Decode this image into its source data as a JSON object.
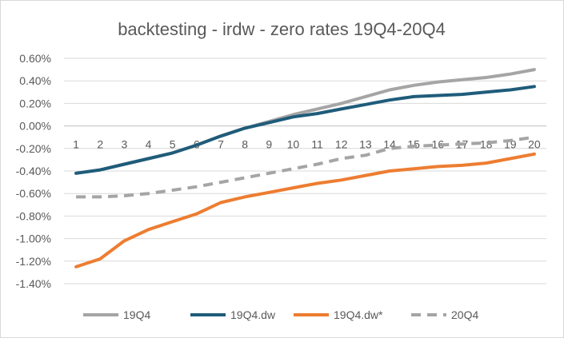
{
  "chart_data": {
    "type": "line",
    "title": "backtesting - irdw  -  zero rates 19Q4-20Q4",
    "x": [
      1,
      2,
      3,
      4,
      5,
      6,
      7,
      8,
      9,
      10,
      11,
      12,
      13,
      14,
      15,
      16,
      17,
      18,
      19,
      20
    ],
    "x_tick_labels": [
      "1",
      "2",
      "3",
      "4",
      "5",
      "6",
      "7",
      "8",
      "9",
      "10",
      "11",
      "12",
      "13",
      "14",
      "15",
      "16",
      "17",
      "18",
      "19",
      "20"
    ],
    "ylim": [
      -1.4,
      0.6
    ],
    "y_tick_values": [
      0.6,
      0.4,
      0.2,
      0.0,
      -0.2,
      -0.4,
      -0.6,
      -0.8,
      -1.0,
      -1.2,
      -1.4
    ],
    "y_tick_labels": [
      "0.60%",
      "0.40%",
      "0.20%",
      "0.00%",
      "-0.20%",
      "-0.40%",
      "-0.60%",
      "-0.80%",
      "-1.00%",
      "-1.20%",
      "-1.40%"
    ],
    "grid": true,
    "legend_position": "bottom",
    "series": [
      {
        "name": "19Q4",
        "color": "#a5a5a5",
        "dash": "solid",
        "values": [
          -0.42,
          -0.39,
          -0.34,
          -0.29,
          -0.24,
          -0.17,
          -0.09,
          -0.02,
          0.04,
          0.1,
          0.15,
          0.2,
          0.26,
          0.32,
          0.36,
          0.39,
          0.41,
          0.43,
          0.46,
          0.5
        ]
      },
      {
        "name": "19Q4.dw",
        "color": "#1f5c7a",
        "dash": "solid",
        "values": [
          -0.42,
          -0.39,
          -0.34,
          -0.29,
          -0.24,
          -0.17,
          -0.09,
          -0.02,
          0.03,
          0.08,
          0.11,
          0.15,
          0.19,
          0.23,
          0.26,
          0.27,
          0.28,
          0.3,
          0.32,
          0.35
        ]
      },
      {
        "name": "19Q4.dw*",
        "color": "#ed7d31",
        "dash": "solid",
        "values": [
          -1.25,
          -1.18,
          -1.02,
          -0.92,
          -0.85,
          -0.78,
          -0.68,
          -0.63,
          -0.59,
          -0.55,
          -0.51,
          -0.48,
          -0.44,
          -0.4,
          -0.38,
          -0.36,
          -0.35,
          -0.33,
          -0.29,
          -0.25
        ]
      },
      {
        "name": "20Q4",
        "color": "#a5a5a5",
        "dash": "dashed",
        "values": [
          -0.63,
          -0.63,
          -0.62,
          -0.6,
          -0.57,
          -0.54,
          -0.5,
          -0.46,
          -0.42,
          -0.38,
          -0.34,
          -0.29,
          -0.26,
          -0.2,
          -0.18,
          -0.17,
          -0.16,
          -0.15,
          -0.13,
          -0.1
        ]
      }
    ]
  }
}
